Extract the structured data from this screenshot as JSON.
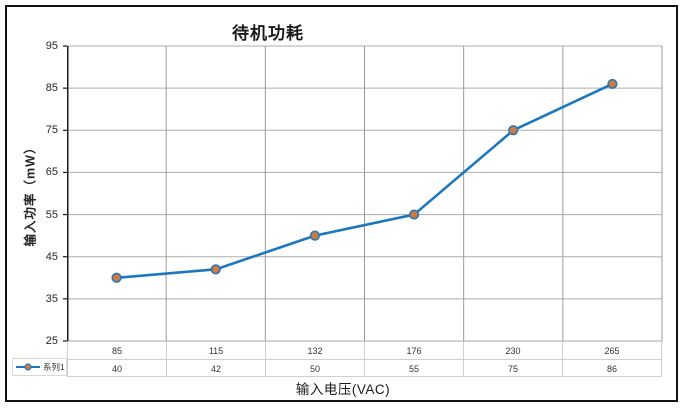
{
  "figure": {
    "title": "待机功耗",
    "x_axis_label": "输入电压(VAC)",
    "y_axis_label": "输入功率（mW）"
  },
  "chart_data": {
    "type": "line",
    "title": "待机功耗",
    "xlabel": "输入电压(VAC)",
    "ylabel": "输入功率（mW）",
    "categories": [
      "85",
      "115",
      "132",
      "176",
      "230",
      "265"
    ],
    "series": [
      {
        "name": "系列1",
        "values": [
          40,
          42,
          50,
          55,
          75,
          86
        ]
      }
    ],
    "ylim": [
      25,
      95
    ],
    "y_ticks": [
      95,
      85,
      75,
      65,
      55,
      45,
      35,
      25
    ],
    "grid": true,
    "legend_position": "bottom-left",
    "data_table_shown": true,
    "colors": {
      "line": "#1C78BE",
      "marker_fill": "#CE7B41",
      "marker_border": "#2E74B5",
      "gridline_h": "#ADADAD",
      "gridline_v": "#9A9A9A",
      "axis": "#1a1a1a",
      "table_border": "#cfcfcf"
    }
  }
}
